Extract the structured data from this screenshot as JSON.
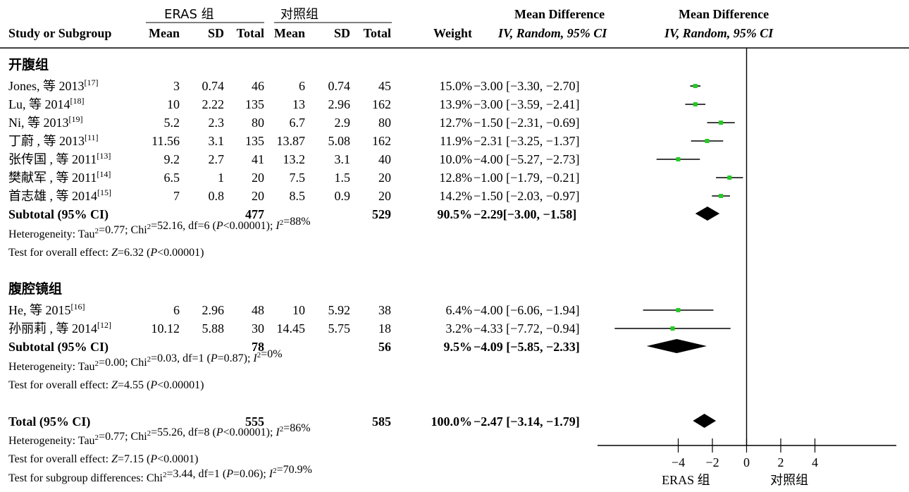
{
  "headers": {
    "eras_group": "ERAS 组",
    "control_group": "对照组",
    "md_left_line1": "Mean Difference",
    "md_left_line2": "IV, Random, 95% CI",
    "md_right_line1": "Mean Difference",
    "md_right_line2": "IV, Random, 95% CI",
    "columns": [
      "Study or Subgroup",
      "Mean",
      "SD",
      "Total",
      "Mean",
      "SD",
      "Total",
      "Weight"
    ]
  },
  "chart_data": {
    "type": "forest",
    "xlim": [
      -6,
      4
    ],
    "xticks": [
      "-4",
      "-2",
      "0",
      "2",
      "4"
    ],
    "xtick_values": [
      -4,
      -2,
      0,
      2,
      4
    ],
    "favours_left": "ERAS 组",
    "favours_right": "对照组",
    "groups": [
      {
        "name": "开腹组",
        "studies": [
          {
            "name": "Jones, 等 2013",
            "ref": "[17]",
            "e_mean": "3",
            "e_sd": "0.74",
            "e_total": "46",
            "c_mean": "6",
            "c_sd": "0.74",
            "c_total": "45",
            "weight": "15.0%",
            "ci_text": "−3.00 [−3.30, −2.70]",
            "md": -3.0,
            "lo": -3.3,
            "hi": -2.7
          },
          {
            "name": "Lu, 等 2014",
            "ref": "[18]",
            "e_mean": "10",
            "e_sd": "2.22",
            "e_total": "135",
            "c_mean": "13",
            "c_sd": "2.96",
            "c_total": "162",
            "weight": "13.9%",
            "ci_text": "−3.00 [−3.59, −2.41]",
            "md": -3.0,
            "lo": -3.59,
            "hi": -2.41
          },
          {
            "name": "Ni, 等 2013",
            "ref": "[19]",
            "e_mean": "5.2",
            "e_sd": "2.3",
            "e_total": "80",
            "c_mean": "6.7",
            "c_sd": "2.9",
            "c_total": "80",
            "weight": "12.7%",
            "ci_text": "−1.50 [−2.31, −0.69]",
            "md": -1.5,
            "lo": -2.31,
            "hi": -0.69
          },
          {
            "name": "丁蔚 , 等 2013",
            "ref": "[11]",
            "e_mean": "11.56",
            "e_sd": "3.1",
            "e_total": "135",
            "c_mean": "13.87",
            "c_sd": "5.08",
            "c_total": "162",
            "weight": "11.9%",
            "ci_text": "−2.31 [−3.25, −1.37]",
            "md": -2.31,
            "lo": -3.25,
            "hi": -1.37
          },
          {
            "name": "张传国 , 等 2011",
            "ref": "[13]",
            "e_mean": "9.2",
            "e_sd": "2.7",
            "e_total": "41",
            "c_mean": "13.2",
            "c_sd": "3.1",
            "c_total": "40",
            "weight": "10.0%",
            "ci_text": "−4.00 [−5.27, −2.73]",
            "md": -4.0,
            "lo": -5.27,
            "hi": -2.73
          },
          {
            "name": "樊献军 , 等 2011",
            "ref": "[14]",
            "e_mean": "6.5",
            "e_sd": "1",
            "e_total": "20",
            "c_mean": "7.5",
            "c_sd": "1.5",
            "c_total": "20",
            "weight": "12.8%",
            "ci_text": "−1.00 [−1.79, −0.21]",
            "md": -1.0,
            "lo": -1.79,
            "hi": -0.21
          },
          {
            "name": "首志雄 , 等 2014",
            "ref": "[15]",
            "e_mean": "7",
            "e_sd": "0.8",
            "e_total": "20",
            "c_mean": "8.5",
            "c_sd": "0.9",
            "c_total": "20",
            "weight": "14.2%",
            "ci_text": "−1.50 [−2.03, −0.97]",
            "md": -1.5,
            "lo": -2.03,
            "hi": -0.97
          }
        ],
        "subtotal": {
          "label": "Subtotal (95% CI)",
          "e_total": "477",
          "c_total": "529",
          "weight": "90.5%",
          "ci_text": "−2.29[−3.00, −1.58]",
          "md": -2.29,
          "lo": -3.0,
          "hi": -1.58
        },
        "heterogeneity": "Heterogeneity: Tau²=0.77; Chi²=52.16, df=6 (P<0.00001); I²=88%",
        "overall": "Test for overall effect: Z=6.32 (P<0.00001)"
      },
      {
        "name": "腹腔镜组",
        "studies": [
          {
            "name": "He, 等 2015",
            "ref": "[16]",
            "e_mean": "6",
            "e_sd": "2.96",
            "e_total": "48",
            "c_mean": "10",
            "c_sd": "5.92",
            "c_total": "38",
            "weight": "6.4%",
            "ci_text": "−4.00 [−6.06, −1.94]",
            "md": -4.0,
            "lo": -6.06,
            "hi": -1.94
          },
          {
            "name": "孙丽莉 , 等 2014",
            "ref": "[12]",
            "e_mean": "10.12",
            "e_sd": "5.88",
            "e_total": "30",
            "c_mean": "14.45",
            "c_sd": "5.75",
            "c_total": "18",
            "weight": "3.2%",
            "ci_text": "−4.33 [−7.72, −0.94]",
            "md": -4.33,
            "lo": -7.72,
            "hi": -0.94
          }
        ],
        "subtotal": {
          "label": "Subtotal (95% CI)",
          "e_total": "78",
          "c_total": "56",
          "weight": "9.5%",
          "ci_text": "−4.09 [−5.85, −2.33]",
          "md": -4.09,
          "lo": -5.85,
          "hi": -2.33
        },
        "heterogeneity": "Heterogeneity: Tau²=0.00; Chi²=0.03, df=1 (P=0.87); I²=0%",
        "overall": "Test for overall effect: Z=4.55 (P<0.00001)"
      }
    ],
    "total": {
      "label": "Total (95% CI)",
      "e_total": "555",
      "c_total": "585",
      "weight": "100.0%",
      "ci_text": "−2.47 [−3.14, −1.79]",
      "md": -2.47,
      "lo": -3.14,
      "hi": -1.79
    },
    "total_heterogeneity": "Heterogeneity: Tau²=0.77; Chi²=55.26, df=8 (P<0.00001); I²=86%",
    "total_overall": "Test for overall effect: Z=7.15 (P<0.0001)",
    "subgroup_differences": "Test for subgroup differences: Chi²=3.44, df=1 (P=0.06); I²=70.9%",
    "colors": {
      "point": "#22cc22",
      "diamond": "#000000",
      "line": "#000000"
    }
  }
}
